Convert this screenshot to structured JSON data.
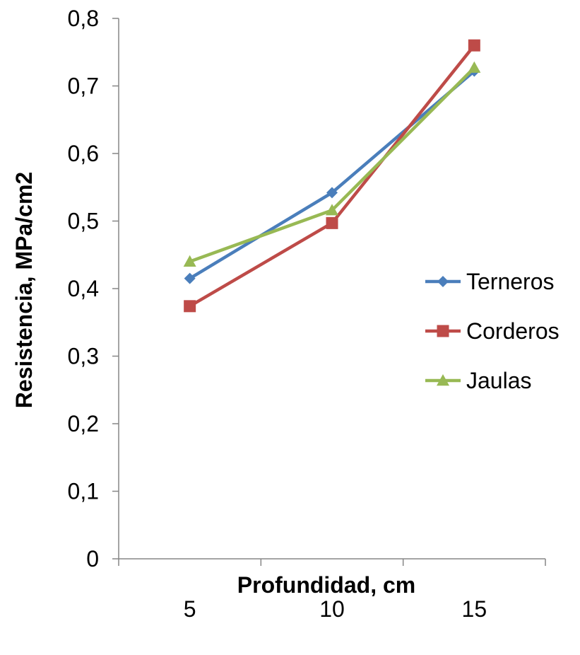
{
  "chart_data": {
    "type": "line",
    "title": "",
    "xlabel": "Profundidad, cm",
    "ylabel": "Resistencia, MPa/cm2",
    "categories": [
      "5",
      "10",
      "15"
    ],
    "ylim": [
      0,
      0.8
    ],
    "yticks": [
      "0",
      "0,1",
      "0,2",
      "0,3",
      "0,4",
      "0,5",
      "0,6",
      "0,7",
      "0,8"
    ],
    "grid": false,
    "legend_position": "right",
    "series": [
      {
        "name": "Terneros",
        "values": [
          0.415,
          0.542,
          0.722
        ],
        "color": "#4a7ebb",
        "marker": "diamond"
      },
      {
        "name": "Corderos",
        "values": [
          0.374,
          0.497,
          0.76
        ],
        "color": "#be4b48",
        "marker": "square"
      },
      {
        "name": "Jaulas",
        "values": [
          0.44,
          0.516,
          0.727
        ],
        "color": "#98b954",
        "marker": "triangle"
      }
    ]
  }
}
